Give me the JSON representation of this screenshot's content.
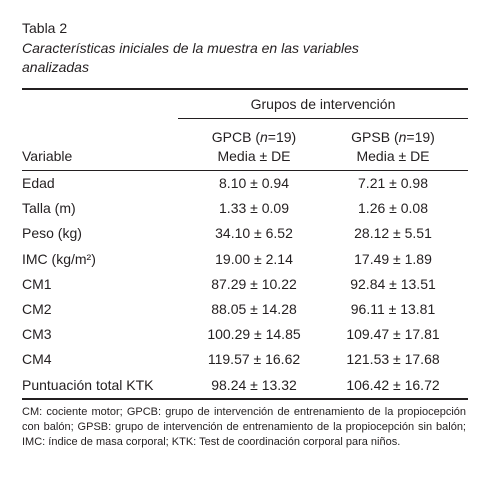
{
  "header": {
    "label": "Tabla 2",
    "caption": "Características iniciales de la muestra en las variables analizadas"
  },
  "table": {
    "group_header": "Grupos de intervención",
    "variable_header": "Variable",
    "groups": [
      {
        "prefix": "GPCB (",
        "n": "n",
        "suffix": "=19)",
        "stat": "Media ± DE"
      },
      {
        "prefix": "GPSB (",
        "n": "n",
        "suffix": "=19)",
        "stat": "Media ± DE"
      }
    ],
    "rows": [
      [
        "Edad",
        "8.10 ± 0.94",
        "7.21 ± 0.98"
      ],
      [
        "Talla (m)",
        "1.33 ± 0.09",
        "1.26 ± 0.08"
      ],
      [
        "Peso (kg)",
        "34.10 ± 6.52",
        "28.12 ± 5.51"
      ],
      [
        "IMC (kg/m²)",
        "19.00 ± 2.14",
        "17.49 ± 1.89"
      ],
      [
        "CM1",
        "87.29 ± 10.22",
        "92.84 ± 13.51"
      ],
      [
        "CM2",
        "88.05 ± 14.28",
        "96.11 ± 13.81"
      ],
      [
        "CM3",
        "100.29 ± 14.85",
        "109.47 ± 17.81"
      ],
      [
        "CM4",
        "119.57 ± 16.62",
        "121.53 ± 17.68"
      ],
      [
        "Puntuación total KTK",
        "98.24 ± 13.32",
        "106.42 ± 16.72"
      ]
    ],
    "footnote": "CM: cociente motor; GPCB: grupo de intervención de entrenamiento de la propiocepción con balón; GPSB: grupo de intervención de entrenamiento de la propiocepción sin balón; IMC: índice de masa corporal; KTK: Test de coordinación corporal para niños."
  }
}
